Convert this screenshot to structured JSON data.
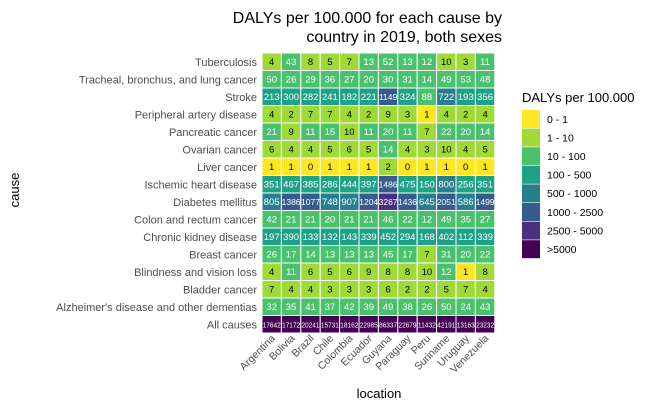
{
  "chart_data": {
    "type": "heatmap",
    "title_lines": [
      "DALYs per 100.000 for each cause by",
      "country in 2019, both sexes"
    ],
    "xlabel": "location",
    "ylabel": "cause",
    "x": [
      "Argentina",
      "Bolivia",
      "Brazil",
      "Chile",
      "Colombia",
      "Ecuador",
      "Guyana",
      "Paraguay",
      "Peru",
      "Suriname",
      "Uruguay",
      "Venezuela"
    ],
    "y": [
      "Tuberculosis",
      "Tracheal, bronchus, and lung cancer",
      "Stroke",
      "Peripheral artery disease",
      "Pancreatic cancer",
      "Ovarian cancer",
      "Liver cancer",
      "Ischemic heart disease",
      "Diabetes mellitus",
      "Colon and rectum cancer",
      "Chronic kidney disease",
      "Breast cancer",
      "Blindness and vision loss",
      "Bladder cancer",
      "Alzheimer's disease and other dementias",
      "All causes"
    ],
    "values": [
      [
        4,
        43,
        8,
        5,
        7,
        13,
        52,
        13,
        12,
        10,
        3,
        11
      ],
      [
        50,
        26,
        29,
        36,
        27,
        20,
        30,
        31,
        14,
        49,
        53,
        48
      ],
      [
        213,
        300,
        282,
        241,
        182,
        221,
        1149,
        324,
        88,
        722,
        193,
        356
      ],
      [
        4,
        2,
        7,
        7,
        4,
        2,
        9,
        3,
        1,
        4,
        2,
        4
      ],
      [
        21,
        9,
        11,
        15,
        10,
        11,
        20,
        11,
        7,
        22,
        20,
        14
      ],
      [
        6,
        4,
        4,
        5,
        6,
        5,
        14,
        4,
        3,
        10,
        4,
        5
      ],
      [
        1,
        1,
        0,
        1,
        1,
        1,
        2,
        0,
        1,
        1,
        0,
        1
      ],
      [
        351,
        467,
        385,
        286,
        444,
        397,
        1486,
        475,
        150,
        800,
        256,
        351
      ],
      [
        805,
        1386,
        1077,
        748,
        907,
        1204,
        3267,
        1436,
        645,
        2051,
        586,
        1499
      ],
      [
        42,
        21,
        21,
        20,
        21,
        21,
        46,
        22,
        12,
        49,
        35,
        27
      ],
      [
        197,
        390,
        133,
        132,
        143,
        339,
        452,
        294,
        168,
        402,
        112,
        339
      ],
      [
        26,
        17,
        14,
        13,
        13,
        13,
        45,
        17,
        7,
        31,
        20,
        22
      ],
      [
        4,
        11,
        6,
        5,
        6,
        9,
        8,
        8,
        10,
        12,
        1,
        8
      ],
      [
        7,
        4,
        4,
        3,
        3,
        3,
        6,
        2,
        2,
        5,
        7,
        4
      ],
      [
        32,
        35,
        41,
        37,
        42,
        39,
        49,
        38,
        26,
        50,
        24,
        43
      ],
      [
        17642,
        17172,
        20241,
        15731,
        18162,
        22985,
        86337,
        22679,
        11432,
        42191,
        13163,
        23232
      ]
    ],
    "legend": {
      "title": "DALYs per 100.000",
      "position": "right",
      "bins": [
        {
          "label": "0 - 1",
          "min": 0,
          "max": 1,
          "color": "#fde725"
        },
        {
          "label": "1 - 10",
          "min": 1,
          "max": 10,
          "color": "#a0da39"
        },
        {
          "label": "10 - 100",
          "min": 10,
          "max": 100,
          "color": "#4ac16d"
        },
        {
          "label": "100 - 500",
          "min": 100,
          "max": 500,
          "color": "#1fa187"
        },
        {
          "label": "500 - 1000",
          "min": 500,
          "max": 1000,
          "color": "#277f8e"
        },
        {
          "label": "1000 - 2500",
          "min": 1000,
          "max": 2500,
          "color": "#365c8d"
        },
        {
          "label": "2500 - 5000",
          "min": 2500,
          "max": 5000,
          "color": "#46327e"
        },
        {
          "label": ">5000",
          "min": 5000,
          "max": null,
          "color": "#440154"
        }
      ]
    }
  }
}
